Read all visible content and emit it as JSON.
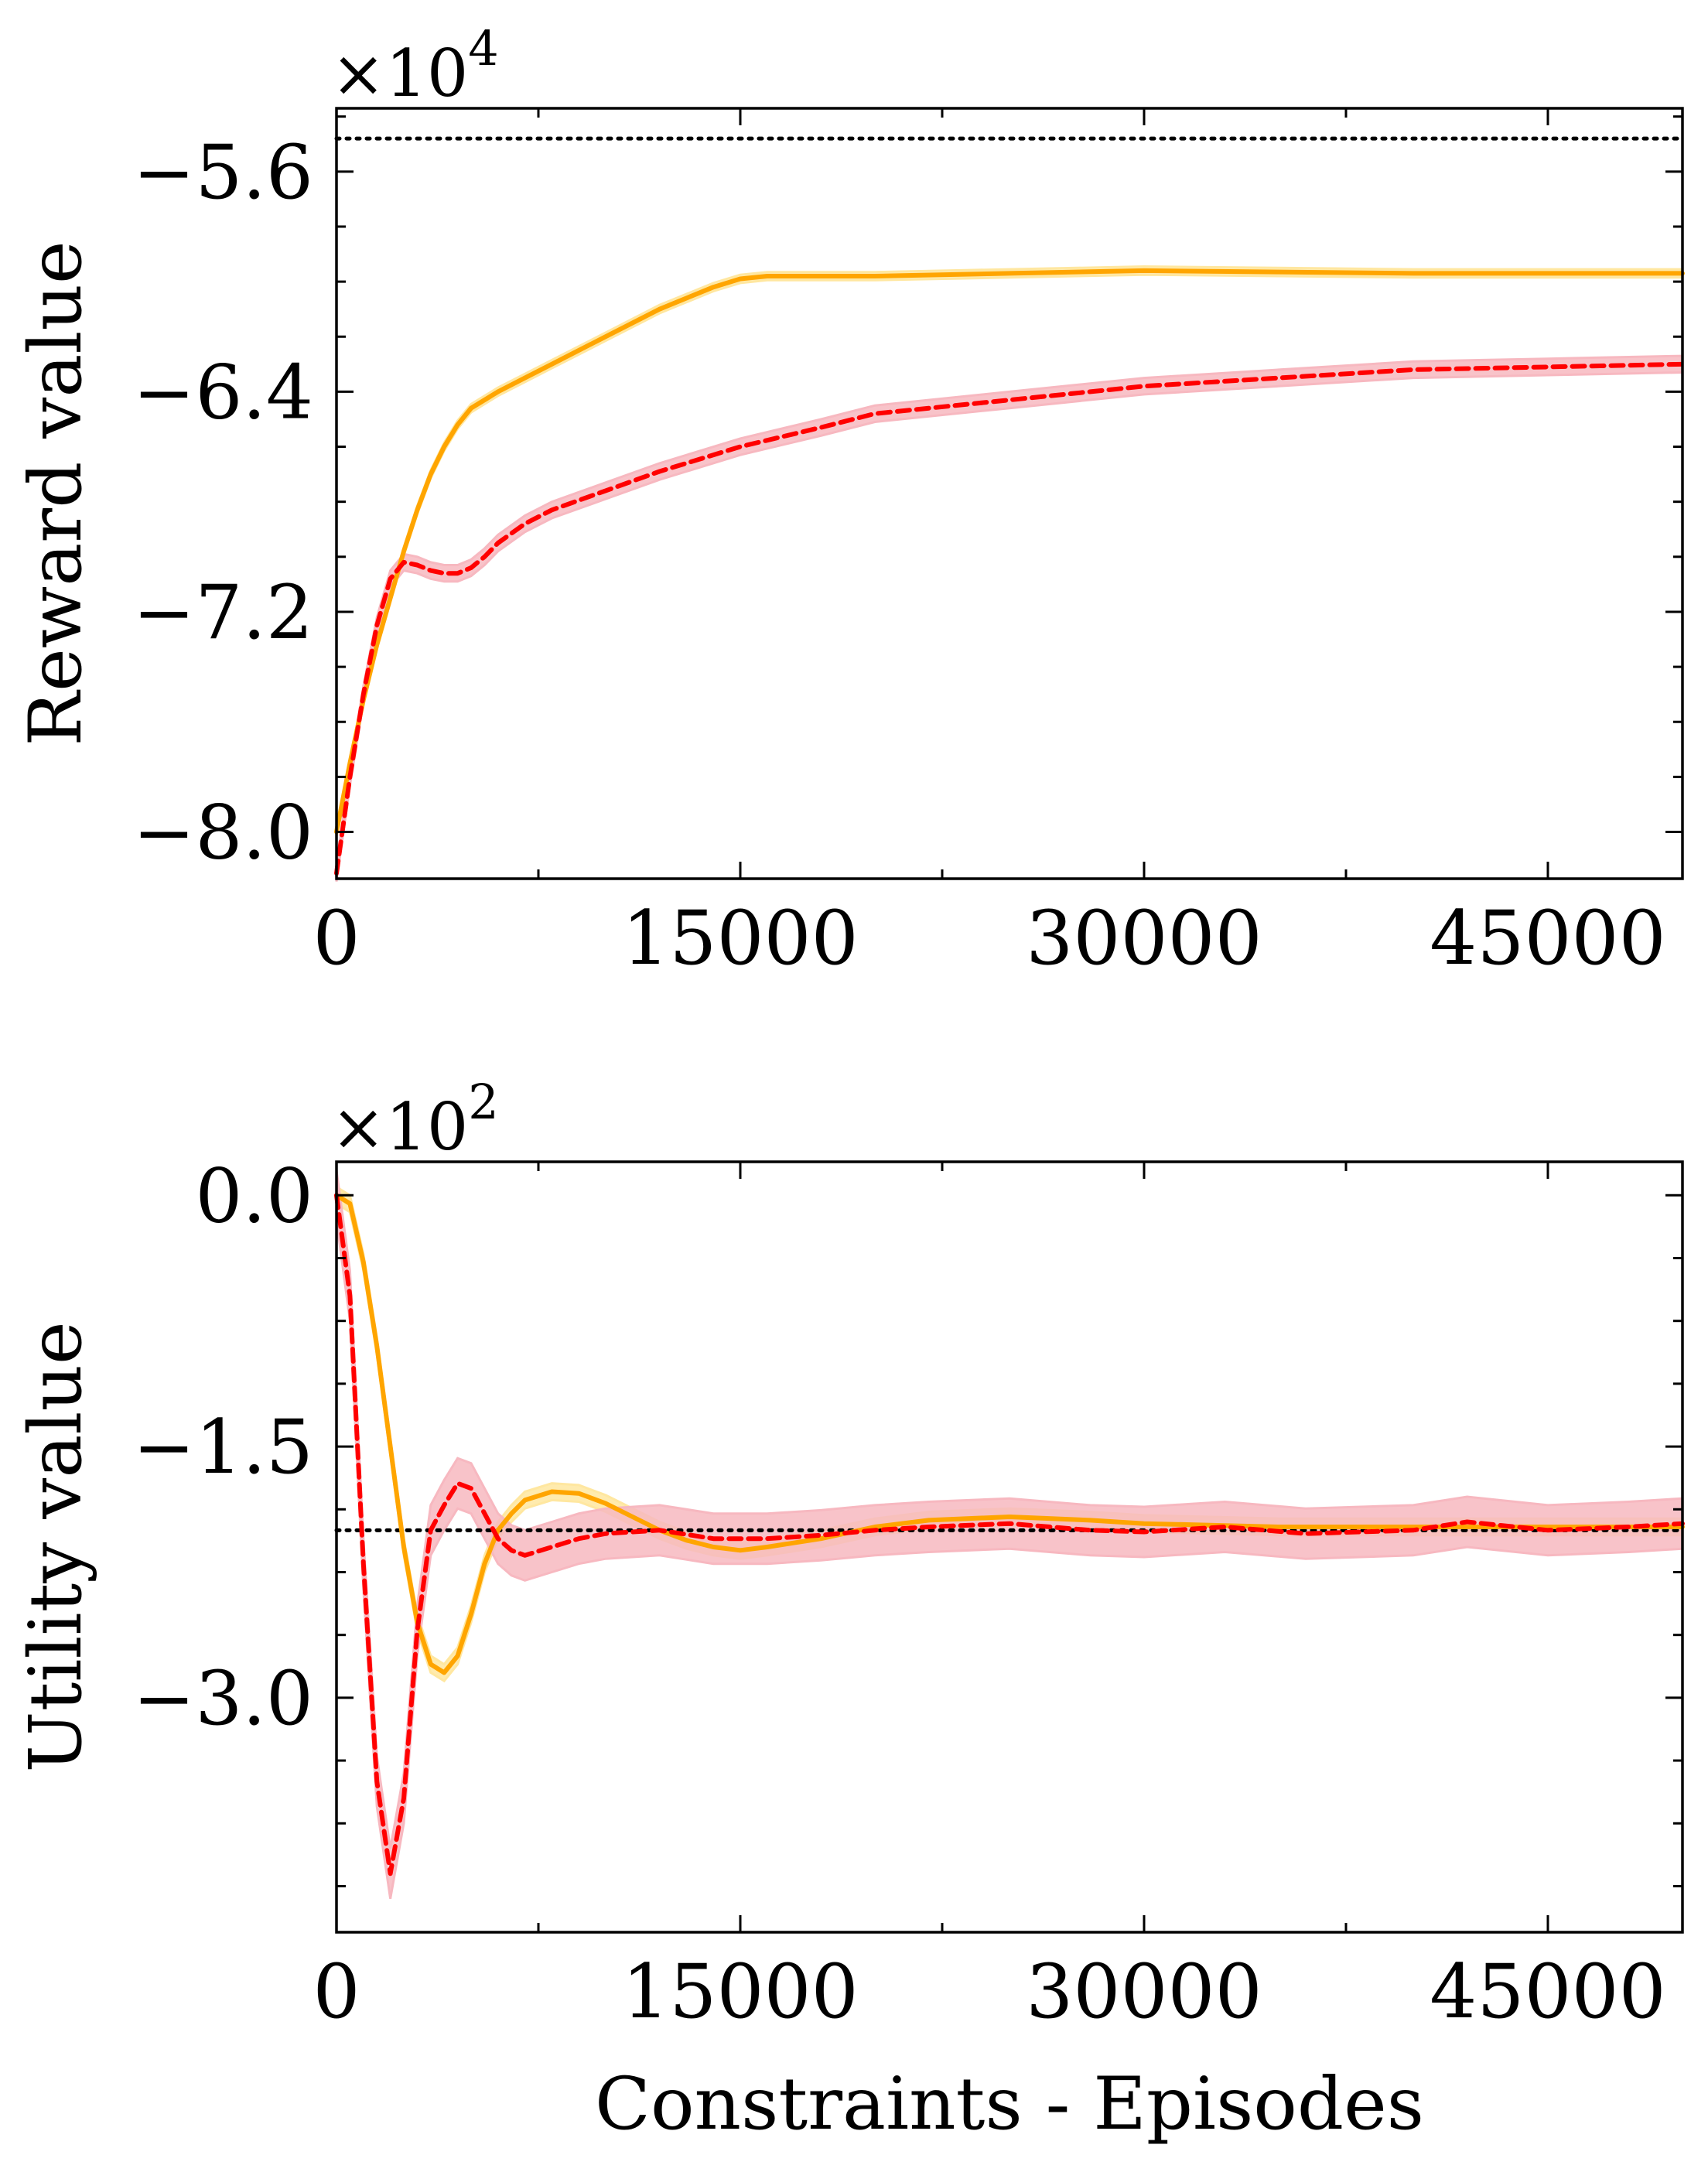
{
  "chart_data": [
    {
      "type": "line",
      "ylabel": "Reward value",
      "xlabel": "",
      "multiplier": {
        "prefix": "×10",
        "exponent": "4"
      },
      "xlim": [
        0,
        50000
      ],
      "ylim": [
        -8.17,
        -5.37
      ],
      "xticks": [
        0,
        15000,
        30000,
        45000
      ],
      "xtick_labels": [
        "0",
        "15000",
        "30000",
        "45000"
      ],
      "yticks": [
        -8.0,
        -7.2,
        -6.4,
        -5.6
      ],
      "ytick_labels": [
        "−8.0",
        "−7.2",
        "−6.4",
        "−5.6"
      ],
      "reference_line": -5.48,
      "series": [
        {
          "name": "orange",
          "color": "#ffa500",
          "band_color": "#ffe7a0",
          "x": [
            0,
            500,
            1000,
            1500,
            2000,
            2500,
            3000,
            3500,
            4000,
            4500,
            5000,
            6000,
            7000,
            8000,
            10000,
            12000,
            14000,
            15000,
            16000,
            18000,
            20000,
            25000,
            30000,
            35000,
            40000,
            45000,
            50000
          ],
          "y": [
            -8.0,
            -7.75,
            -7.52,
            -7.32,
            -7.15,
            -6.98,
            -6.83,
            -6.7,
            -6.6,
            -6.52,
            -6.46,
            -6.4,
            -6.35,
            -6.3,
            -6.2,
            -6.1,
            -6.02,
            -5.99,
            -5.98,
            -5.98,
            -5.98,
            -5.97,
            -5.96,
            -5.965,
            -5.97,
            -5.97,
            -5.97
          ],
          "band": 0.015
        },
        {
          "name": "red-dashed",
          "color": "#ff0000",
          "dashed": true,
          "band_color": "#f7b8c0",
          "x": [
            0,
            500,
            1000,
            1500,
            2000,
            2500,
            3000,
            3500,
            4000,
            4500,
            5000,
            5500,
            6000,
            7000,
            8000,
            10000,
            12000,
            15000,
            18000,
            20000,
            25000,
            30000,
            35000,
            40000,
            45000,
            50000
          ],
          "y": [
            -8.15,
            -7.8,
            -7.5,
            -7.25,
            -7.08,
            -7.02,
            -7.03,
            -7.05,
            -7.06,
            -7.06,
            -7.04,
            -7.0,
            -6.95,
            -6.88,
            -6.83,
            -6.76,
            -6.69,
            -6.6,
            -6.53,
            -6.48,
            -6.43,
            -6.38,
            -6.35,
            -6.32,
            -6.31,
            -6.3
          ],
          "band": 0.03
        }
      ]
    },
    {
      "type": "line",
      "ylabel": "Utility value",
      "xlabel": "Constraints - Episodes",
      "multiplier": {
        "prefix": "×10",
        "exponent": "2"
      },
      "xlim": [
        0,
        50000
      ],
      "ylim": [
        -4.4,
        0.2
      ],
      "xticks": [
        0,
        15000,
        30000,
        45000
      ],
      "xtick_labels": [
        "0",
        "15000",
        "30000",
        "45000"
      ],
      "yticks": [
        0.0,
        -1.5,
        -3.0
      ],
      "ytick_labels": [
        "0.0",
        "−1.5",
        "−3.0"
      ],
      "reference_line": -2.0,
      "series": [
        {
          "name": "orange",
          "color": "#ffa500",
          "band_color": "#ffe7a0",
          "x": [
            0,
            500,
            1000,
            1500,
            2000,
            2500,
            3000,
            3500,
            4000,
            4500,
            5000,
            5500,
            6000,
            6500,
            7000,
            8000,
            9000,
            10000,
            11000,
            12000,
            13000,
            14000,
            15000,
            16000,
            18000,
            20000,
            22000,
            25000,
            28000,
            30000,
            35000,
            40000,
            45000,
            50000
          ],
          "y": [
            0.0,
            -0.05,
            -0.4,
            -0.9,
            -1.5,
            -2.1,
            -2.55,
            -2.8,
            -2.85,
            -2.75,
            -2.5,
            -2.2,
            -2.0,
            -1.9,
            -1.82,
            -1.77,
            -1.78,
            -1.84,
            -1.92,
            -2.0,
            -2.06,
            -2.1,
            -2.12,
            -2.1,
            -2.05,
            -1.98,
            -1.94,
            -1.92,
            -1.94,
            -1.96,
            -1.98,
            -1.98,
            -1.98,
            -1.98
          ],
          "band": 0.05
        },
        {
          "name": "red-dashed",
          "color": "#ff0000",
          "dashed": true,
          "band_color": "#f7b8c0",
          "x": [
            0,
            500,
            1000,
            1500,
            2000,
            2500,
            3000,
            3500,
            4000,
            4500,
            5000,
            5500,
            6000,
            6500,
            7000,
            8000,
            9000,
            10000,
            12000,
            14000,
            16000,
            18000,
            20000,
            22000,
            25000,
            28000,
            30000,
            33000,
            36000,
            40000,
            42000,
            45000,
            48000,
            50000
          ],
          "y": [
            0.0,
            -0.6,
            -2.2,
            -3.5,
            -4.05,
            -3.6,
            -2.6,
            -2.0,
            -1.85,
            -1.72,
            -1.75,
            -1.9,
            -2.05,
            -2.12,
            -2.15,
            -2.1,
            -2.05,
            -2.02,
            -2.0,
            -2.05,
            -2.05,
            -2.03,
            -2.0,
            -1.98,
            -1.96,
            -2.0,
            -2.01,
            -1.98,
            -2.02,
            -2.0,
            -1.95,
            -2.0,
            -1.98,
            -1.96
          ],
          "band": 0.15
        }
      ]
    }
  ]
}
